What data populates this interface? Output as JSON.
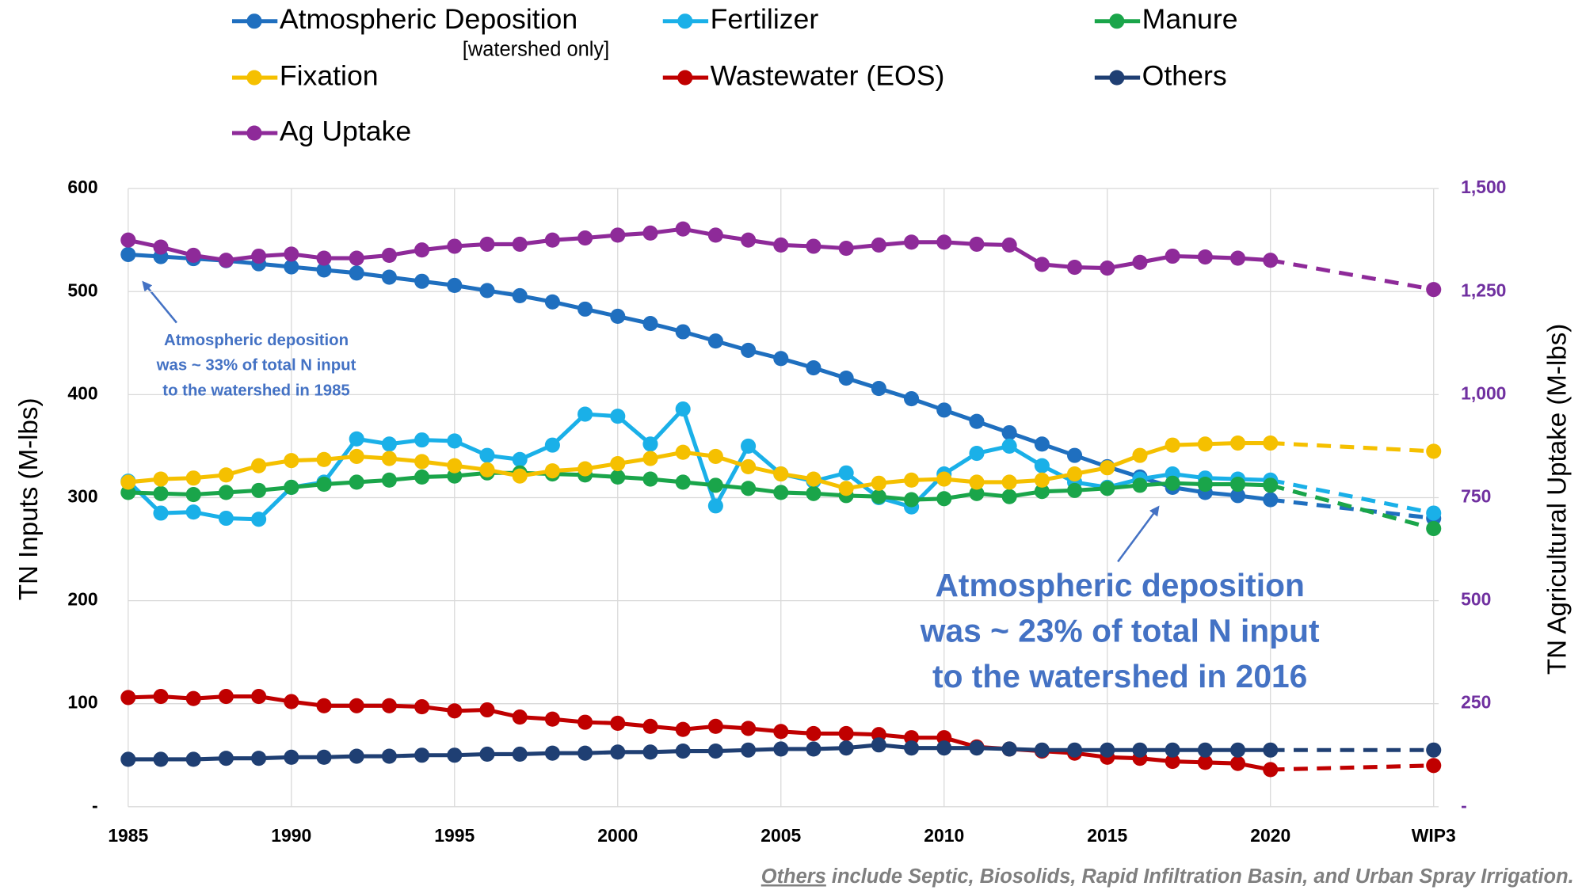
{
  "chart_data": {
    "type": "line",
    "y_label": "TN Inputs (M-lbs)",
    "y2_label": "TN Agricultural Uptake (M-lbs)",
    "legend_note": "[watershed only]",
    "categories": [
      "1985",
      null,
      null,
      null,
      null,
      "1990",
      null,
      null,
      null,
      null,
      "1995",
      null,
      null,
      null,
      null,
      "2000",
      null,
      null,
      null,
      null,
      "2005",
      null,
      null,
      null,
      null,
      "2010",
      null,
      null,
      null,
      null,
      "2015",
      null,
      null,
      null,
      null,
      "2020",
      null,
      null,
      null,
      null,
      "WIP3"
    ],
    "ylim": [
      0,
      600
    ],
    "yticks": [
      {
        "value": 0,
        "label": "-"
      },
      100,
      200,
      300,
      400,
      500,
      600
    ],
    "y2lim": [
      0,
      1500
    ],
    "y2ticks": [
      {
        "value": 0,
        "label": "-"
      },
      250,
      500,
      750,
      {
        "value": 1000,
        "label": "1,000"
      },
      {
        "value": 1250,
        "label": "1,250"
      },
      {
        "value": 1500,
        "label": "1,500"
      }
    ],
    "grid": true,
    "series": [
      {
        "name": "Atmospheric Deposition",
        "color": "#1f6fbf",
        "values": [
          536,
          534,
          532,
          530,
          527,
          524,
          521,
          518,
          514,
          510,
          506,
          501,
          496,
          490,
          483,
          476,
          469,
          461,
          452,
          443,
          435,
          426,
          416,
          406,
          396,
          385,
          374,
          363,
          352,
          341,
          330,
          320,
          310,
          305,
          302,
          298,
          null,
          null,
          null,
          null,
          280
        ]
      },
      {
        "name": "Fertilizer",
        "color": "#1ab0e8",
        "values": [
          316,
          285,
          286,
          280,
          279,
          310,
          315,
          357,
          352,
          356,
          355,
          341,
          337,
          351,
          381,
          379,
          352,
          386,
          292,
          350,
          323,
          316,
          324,
          300,
          291,
          323,
          343,
          350,
          331,
          315,
          310,
          318,
          323,
          319,
          318,
          317,
          null,
          null,
          null,
          null,
          285
        ]
      },
      {
        "name": "Manure",
        "color": "#1aa54a",
        "values": [
          305,
          304,
          303,
          305,
          307,
          310,
          313,
          315,
          317,
          320,
          321,
          324,
          324,
          323,
          322,
          320,
          318,
          315,
          312,
          309,
          305,
          304,
          302,
          301,
          298,
          299,
          304,
          301,
          306,
          307,
          309,
          312,
          314,
          313,
          313,
          312,
          null,
          null,
          null,
          null,
          270
        ]
      },
      {
        "name": "Fixation",
        "color": "#f5c000",
        "values": [
          315,
          318,
          319,
          322,
          331,
          336,
          337,
          340,
          338,
          335,
          331,
          327,
          321,
          326,
          328,
          333,
          338,
          344,
          340,
          330,
          323,
          318,
          309,
          314,
          317,
          318,
          315,
          315,
          317,
          323,
          329,
          341,
          351,
          352,
          353,
          353,
          null,
          null,
          null,
          null,
          345
        ]
      },
      {
        "name": "Wastewater (EOS)",
        "color": "#c00000",
        "values": [
          106,
          107,
          105,
          107,
          107,
          102,
          98,
          98,
          98,
          97,
          93,
          94,
          87,
          85,
          82,
          81,
          78,
          75,
          78,
          76,
          73,
          71,
          71,
          70,
          67,
          67,
          58,
          56,
          54,
          52,
          48,
          47,
          44,
          43,
          42,
          36,
          null,
          null,
          null,
          null,
          40
        ]
      },
      {
        "name": "Others",
        "color": "#1f3f73",
        "values": [
          46,
          46,
          46,
          47,
          47,
          48,
          48,
          49,
          49,
          50,
          50,
          51,
          51,
          52,
          52,
          53,
          53,
          54,
          54,
          55,
          56,
          56,
          57,
          60,
          57,
          57,
          57,
          56,
          55,
          55,
          55,
          55,
          55,
          55,
          55,
          55,
          null,
          null,
          null,
          null,
          55
        ]
      },
      {
        "name": "Ag Uptake",
        "color": "#8e2a99",
        "axis": "y2",
        "values": [
          1375,
          1358,
          1338,
          1326,
          1336,
          1341,
          1331,
          1331,
          1338,
          1351,
          1360,
          1365,
          1365,
          1375,
          1380,
          1387,
          1392,
          1402,
          1387,
          1375,
          1363,
          1360,
          1355,
          1363,
          1370,
          1370,
          1365,
          1363,
          1316,
          1309,
          1307,
          1321,
          1336,
          1334,
          1331,
          1326,
          null,
          null,
          null,
          null,
          1255
        ]
      }
    ],
    "annotations": [
      {
        "lines": [
          "Atmospheric deposition",
          "was ~ 33% of total N input",
          "to the watershed in 1985"
        ]
      },
      {
        "lines": [
          "Atmospheric deposition",
          "was ~ 23% of total N input",
          "to the watershed in 2016"
        ]
      }
    ],
    "footnote_underlined": "Others",
    "footnote": " include Septic, Biosolids, Rapid Infiltration Basin, and Urban Spray Irrigation."
  }
}
